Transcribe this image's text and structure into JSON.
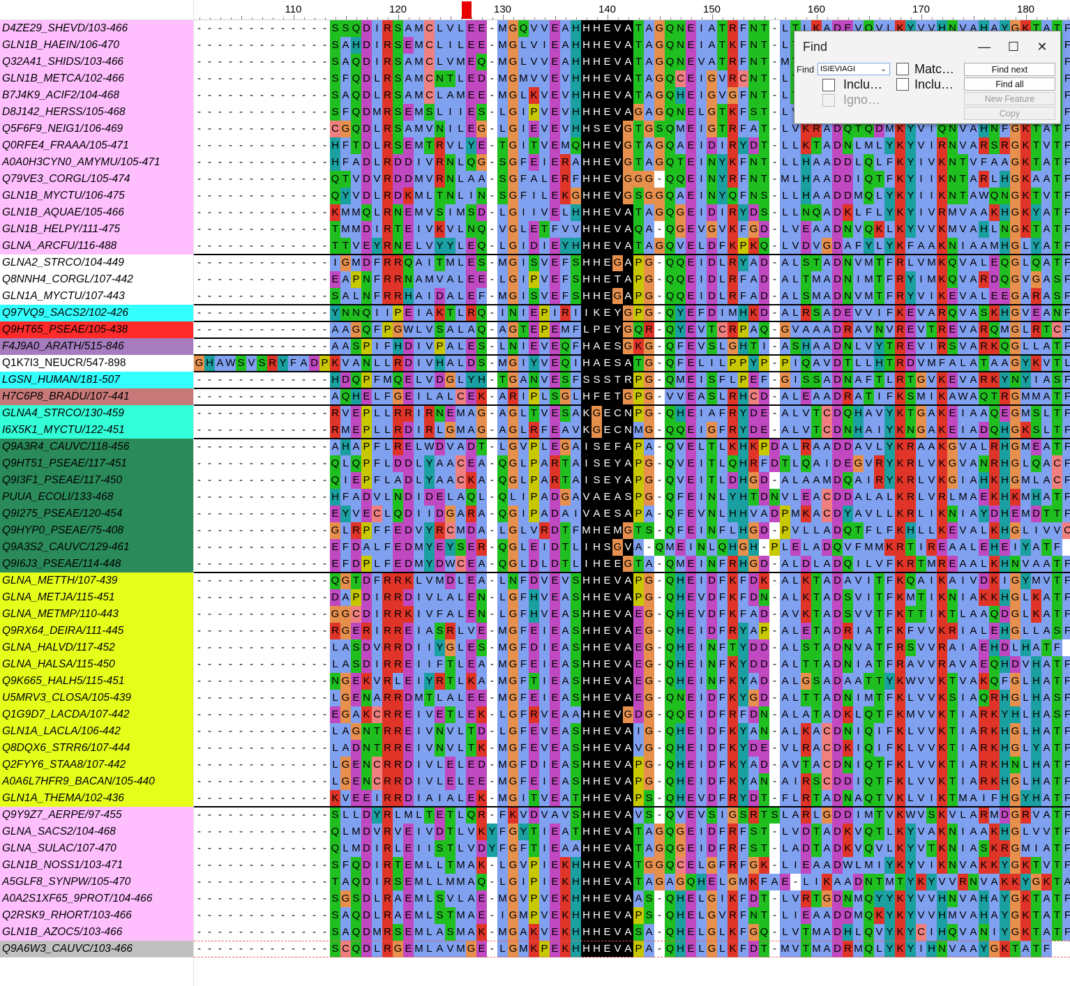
{
  "colors": {
    "G": "#e7904d",
    "P": "#c8c800",
    "S": "#20bf20",
    "T": "#20bf20",
    "C": "#f08080",
    "N": "#20bf20",
    "Q": "#20bf20",
    "D": "#c048c0",
    "E": "#c048c0",
    "K": "#e03428",
    "R": "#e03428",
    "H": "#1aa0a0",
    "Y": "#1aa0a0",
    "A": "#80a0f0",
    "V": "#80a0f0",
    "L": "#80a0f0",
    "I": "#80a0f0",
    "M": "#80a0f0",
    "F": "#80a0f0",
    "W": "#80a0f0"
  },
  "group_colors": {
    "pink": "#ffbfff",
    "cyan": "#33ffff",
    "red": "#ff2a2a",
    "purple": "#a67cbf",
    "brown": "#c87878",
    "aqua": "#33ffd8",
    "green": "#2a8a5a",
    "yellow": "#e5ff1a",
    "gray": "#c0c0c0",
    "white": "#ffffff"
  },
  "ruler": {
    "labels": [
      "110",
      "120",
      "130",
      "140",
      "150",
      "160",
      "170",
      "180"
    ],
    "marker_color": "#e60000"
  },
  "sequences": [
    {
      "name": "D4ZE29_SHEVD/103-466",
      "group": "pink",
      "seq": "-------------SSQDIRSAMCLVLEE-MGQVVEAHHHEVATAGQNEIATRFNT-LTLKADEVQVLKYVVHNVAHAYGKTATF"
    },
    {
      "name": "GLN1B_HAEIN/106-470",
      "group": "pink",
      "seq": "-------------SAHDIRSEMCLILEE-MGLVIEAHHHEVATAGQNEIATKFNT-LTLKADEVQVLKYVVHNVAHAYGKTATF"
    },
    {
      "name": "Q32A41_SHIDS/103-466",
      "group": "pink",
      "seq": "-------------SAQDIRSAMCLVMEQ-MGLVVEAHHHEVATAGQNEVATRFNT-MTLKADEVQVLKYVVHNVAHAYGKTATF"
    },
    {
      "name": "GLN1B_METCA/102-466",
      "group": "pink",
      "seq": "-------------SFQDLRSAMCNTLED-MGMVVEVHHHEVATAGQCEIGVRCNT-LTLKADEVQVLKYVVHNVAHAYGKTATF"
    },
    {
      "name": "B7J4K9_ACIF2/104-468",
      "group": "pink",
      "seq": "-------------SAQDLRSAMCLAMEE-MGLKVEVHHHEVATAGQHEIGVGFNT-LTLKADEVQVLKYVVHNVAHAYGKTATF"
    },
    {
      "name": "D8J142_HERSS/105-468",
      "group": "pink",
      "seq": "-------------SFQDMRSEMSLIIES-LGIPVEVHHHEVAGAGQNELGTKFST-LVLKADEVQVLKYVVHNVAHAYGKTATF"
    },
    {
      "name": "Q5F6F9_NEIG1/106-469",
      "group": "pink",
      "seq": "-------------CGQDLRSAMVNILEG-LGIEVEVHHSEVGTGSQMEIGTRFAT-LVKRADQTQDMKYVIQNVAHNFGKTATF"
    },
    {
      "name": "Q0RFE4_FRAAA/105-471",
      "group": "pink",
      "seq": "-------------HFTDLRSEMTRVLYE-TGITVEMQHHEVGTAGQAEIDIRYDT-LLKTADNLMLYKYVIRNVARSRGKTVTF"
    },
    {
      "name": "A0A0H3CYN0_AMYMU/105-471",
      "group": "pink",
      "seq": "-------------HFADLRDDIVRNLQG-SGFEIERAHHEVGTAGQTEINYKFNT-LLHAADDLQLFKYIVKNTVFAAGKTATF"
    },
    {
      "name": "Q79VE3_CORGL/105-474",
      "group": "pink",
      "seq": "-------------QTVDVRDDMVRNLAA-SGFALERFHHEVGGG-QQEINYRFNT-MLHAADDIQTFKYIIKNTARLHGKAATF"
    },
    {
      "name": "GLN1B_MYCTU/106-475",
      "group": "pink",
      "seq": "-------------QYVDLRDKMLTNLIN-SGFILEKGHHEVGSGGQAEINYQFNS-LLHAADDMQLYKYIIKNTAWQNGKTVTF"
    },
    {
      "name": "GLN1B_AQUAE/105-466",
      "group": "pink",
      "seq": "-------------KMMQLRNEMVSIMSD-LGIIVELHHHEVATAGQGEIDIRYDS-LLNQADKLFLYKYIVRMVAAKHGKYATF"
    },
    {
      "name": "GLN1B_HELPY/111-475",
      "group": "pink",
      "seq": "-------------TMMDIRTEIVKVLNQ-VGLETFVVHHEVAQA-QGEVGVKFGD-LVEAADNVQKLKYVVKMVAHLNGKTATF"
    },
    {
      "name": "GLNA_ARCFU/116-488",
      "group": "pink",
      "seq": "-------------TTVEYRNELVYYLEQ-LGIDIEYHHHEVATAGQVELDFKPKQ-LVDVGDAFYLYKFAAKNIAAMHGLYATF"
    },
    {
      "name": "GLNA2_STRCO/104-449",
      "group": "white",
      "seq": "-------------IGMDFRRQAITMLES-MGISVEFSHHEGAPG-QQEIDLRYAD-ALSTADNVMTFRLVMKQVALEQGLQATF"
    },
    {
      "name": "Q8NNH4_CORGL/107-442",
      "group": "white",
      "seq": "-------------EAPNFRRNAMVALEE-LGIPVEFSHHETAPG-QQEIDLRFAD-ALTMADNIMTFRYIMKQVARDQGVGASF"
    },
    {
      "name": "GLN1A_MYCTU/107-443",
      "group": "white",
      "seq": "-------------SALNFRRHAIDALEF-MGISVEFSHHEGAPG-QQEIDLRFAD-ALSMADNVMTFRYVIKEVALEEGARASF"
    },
    {
      "name": "Q97VQ9_SACS2/102-426",
      "group": "cyan",
      "seq": "-------------YNNQIIPEIAKTLRQ-INIEPIRIIKEYGPG-QYEFDIMHKD-ALRSADEVVIFKEVARQVASKHGVEANF"
    },
    {
      "name": "Q9HT65_PSEAE/105-438",
      "group": "red",
      "seq": "-------------AAGQFPGWLVSALAQ-AGTEPEMFLPEYGQR-QYEVTCRPAQ-GVAAADRAVNVREVTREVARQMGLRTCF"
    },
    {
      "name": "F4J9A0_ARATH/515-846",
      "group": "purple",
      "seq": "-------------AASPIFHDIVPALES-LNIEVEQFHAESGKG-QFEVSLGHTI-ASHAADNLVYTREVIRSVARKQGLLATF"
    },
    {
      "name": "Q1K7I3_NEUCR/547-898",
      "group": "white",
      "normal": true,
      "seq": "GHAWSVSRYFADPKVANLLRDIVHALDS-MGIYVEQIHAESATG-QFELILPPYP-PIQAVDTLLHTRDVMFALATAAGYKVTL"
    },
    {
      "name": "LGSN_HUMAN/181-507",
      "group": "cyan",
      "seq": "-------------HDQPFMQELVDGLYH-TGANVESFSSSTRPG-QMEISFLPEF-GISSADNAFTLRTGVKEVARKYNYIASF"
    },
    {
      "name": "H7C6P8_BRADU/107-441",
      "group": "brown",
      "seq": "-------------AQHELFGEILALCEK-ARIPLSGLHFETGPG-VVEASLRHCD-ALEAADRATIFKSMIKAWAQTRGMMATF"
    },
    {
      "name": "GLNA4_STRCO/130-459",
      "group": "aqua",
      "seq": "-------------RVEPLLRRIRNEMAG-AGLTVESAKGECNPG-QHEIAFRYDE-ALVTCDQHAVYKTGAKEIAAQEGMSLTF"
    },
    {
      "name": "I6X5K1_MYCTU/122-451",
      "group": "aqua",
      "seq": "-------------RMEPLLRDIRLGMAG-AGLRFEAVKGECNMG-QQEIGFRYDE-ALVTCDNHAIYKNGAKEIADQHGKSLTF"
    },
    {
      "name": "Q9A3R4_CAUVC/118-456",
      "group": "green",
      "seq": "-------------AHAPFLRELWDVADT-LGVPLEGAISEFAPA-QVELTLKHKPDALRAADDAVLYKRAAKGVALRHGMEATF"
    },
    {
      "name": "Q9HT51_PSEAE/117-451",
      "group": "green",
      "seq": "-------------QLQPFLDDLYAACEA-QGLPARTAISEYAPG-QVEITLQHRFDTLQAIDEGVRYKRLVKGVANRHGLQACF"
    },
    {
      "name": "Q9I3F1_PSEAE/117-450",
      "group": "green",
      "seq": "-------------QIEPFLADLYAACKA-QGLPARTAISEYAPG-QVEITLDHGD-ALAAMDQAIRYKRLVKGIAHKHGMLACF"
    },
    {
      "name": "PUUA_ECOLI/133-468",
      "group": "green",
      "seq": "-------------HFADVLNDIDELAQL-QLIPADGAVAEASPG-QFEINLYHTDNVLEACDDALALKRLVRLMAEKHKMHATF"
    },
    {
      "name": "Q9I275_PSEAE/120-454",
      "group": "green",
      "seq": "-------------EYVECLQDIIDGARA-QGIPADAIVAESAPA-QFEVNLHHVADPMKACDYAVLLKRLIKNIAYDHEMDTTF"
    },
    {
      "name": "Q9HYP0_PSEAE/75-408",
      "group": "green",
      "seq": "-------------GLRPFFEDVYRCMDA-LGLVRDTFMHEMGTS-QFEINFLHGD-PVLLADQTFLFKHLLKEVALKHGLIVVC"
    },
    {
      "name": "Q9A3S2_CAUVC/129-461",
      "group": "green",
      "seq": "-------------EFDALFEDMYEYSER-QGLEIDTLIHSGVA-QMEINLQHGH-PLELADQVFMMKRTIREAALEHEIYATF"
    },
    {
      "name": "Q9I6J3_PSEAE/114-448",
      "group": "green",
      "seq": "-------------EFDPLFEDMYDWCEA-QGLDLDTLIHEEGTA-QMEINFRHGD-ALDLADQILVFKRTMREAALKHNVAATF"
    },
    {
      "name": "GLNA_METTH/107-439",
      "group": "yellow",
      "seq": "-------------QGTDFRRKLVMDLEA-LNFDVEVSHHEVAPG-QHEIDFKFDK-ALKTADAVITFKQAIKAIVDKIGYMVTF"
    },
    {
      "name": "GLNA_METJA/115-451",
      "group": "yellow",
      "seq": "-------------DAPDIRRDIVLALEN-LGFHVEASHHEVAPG-QHEVDFKFDN-ALKTADSVITFKMTIKNIAKKHGLKATF"
    },
    {
      "name": "GLNA_METMP/110-443",
      "group": "yellow",
      "seq": "-------------GGCDIRRKIVFALEN-LGFHVEASHHEVAEG-QHEVDFKFAD-AVKTADSVVTFKTTIKTLAAQDGLKATF"
    },
    {
      "name": "Q9RX64_DEIRA/111-445",
      "group": "yellow",
      "seq": "-------------RGERIRREIASRLVE-MGFEIEASHHEVAEG-QHEIDFRYAP-ALETADRIATFKFVVKRIALEHGLLASF"
    },
    {
      "name": "GLNA_HALVD/117-452",
      "group": "yellow",
      "seq": "-------------LASDVRRDIIYGLES-MGFDIEASHHEVAEG-QHEINFTYDD-ALSTADNVATFRSVVRAIAEHDLHATF"
    },
    {
      "name": "GLNA_HALSA/115-450",
      "group": "yellow",
      "seq": "-------------LASDIRREIIFTLEA-MGFEIEASHHEVAEG-QHEINFKYDD-ALTTADNIATFRAVVRAVAEQHDVHATF"
    },
    {
      "name": "Q9K665_HALH5/115-451",
      "group": "yellow",
      "seq": "-------------NGEKVRLEIYRTLKA-MGFTIEASHHEVAEG-QHEINFKYAD-ALGSADAATTYKWVVKTVAKQFGLHATF"
    },
    {
      "name": "U5MRV3_CLOSA/105-439",
      "group": "yellow",
      "seq": "-------------LGENARRDMTLALEE-MGFEIEASHHEVAEG-QNEIDFKYGD-ALTTADNIMTFKLVVKSIAQRHGLHASF"
    },
    {
      "name": "Q1G9D7_LACDA/107-442",
      "group": "yellow",
      "seq": "-------------EGAKCRREIVETLEK-LGFRVEAAHHEVGDG-QQEIDFRFDN-ALATADKLQTFKMVVKTIARKYHLHASF"
    },
    {
      "name": "GLN1A_LACLA/106-442",
      "group": "yellow",
      "seq": "-------------LAGNTRREIVNVLTD-LGFEVEASHHEVAIG-QHEIDFKYAN-ALKACDNIQIFKLVVKTIARKHGLHATF"
    },
    {
      "name": "Q8DQX6_STRR6/107-444",
      "group": "yellow",
      "seq": "-------------LADNTRREIVNVLTK-MGFEVEASHHEVAVG-QHEIDFKYDE-VLRACDKIQIFKLVVKTIARKHGLYATF"
    },
    {
      "name": "Q2FYY6_STAA8/107-442",
      "group": "yellow",
      "seq": "-------------LGENCRRDIVLELED-MGFDIEASHHEVAPG-QHEIDFKYAD-AVTACDNIQTFKLVVKTIARKHNLHATF"
    },
    {
      "name": "A0A6L7HFR9_BACAN/105-440",
      "group": "yellow",
      "seq": "-------------LGENCRRDIVLELEE-MGFEIEASHHEVAPG-QHEIDFKYAN-AIRSCDDIQTFKLVVKTIARKHGLHATF"
    },
    {
      "name": "GLN1A_THEMA/102-436",
      "group": "yellow",
      "seq": "-------------KVEEIRRDIAIALEK-MGITVEATHHEVAPS-QHEVDFRYDT-FLRTADNAQTVKLVIKTMAIFHGYHATF"
    },
    {
      "name": "Q9Y9Z7_AERPE/97-455",
      "group": "pink",
      "seq": "-------------SLLDYRLMLTETLQR-FKVDVAVSHHEVAVS-QVEVSIGSRTSLARLGDDIMTVKWVSKVLARMDGRVATF"
    },
    {
      "name": "GLNA_SACS2/104-468",
      "group": "pink",
      "seq": "-------------QLMDVRVEIVDTLVKYFGYTIEATHHEVATAGQGEIDFRFST-LVDTADKVQTLKYVAKNIAAKHGLVVTF"
    },
    {
      "name": "GLNA_SULAC/107-470",
      "group": "pink",
      "seq": "-------------QLMDIRLEIISTLVDYFGFTIEAAHHEVATAGQGEIDFRFST-LADTADKVQVLKYVTKNIASKRGMIATF"
    },
    {
      "name": "GLN1B_NOSS1/103-471",
      "group": "pink",
      "seq": "-------------SFQDIRTEMLLTMAK-LGVPIEKHHHEVATGGQCELGFRFGK-LIEAADWLMIYKYVIKNVAKKYGKTVTF"
    },
    {
      "name": "A5GLF8_SYNPW/105-470",
      "group": "pink",
      "seq": "-------------TAQDIRSEMLLMMAQ-LGIPIEKHHHEVATAGAGQHELGMKFAE-LIKAADNTMTYKYVVRNVAKKYGKTATF"
    },
    {
      "name": "A0A2S1XF65_9PROT/104-466",
      "group": "pink",
      "seq": "-------------SGSDLRAEMLSVLAE-MGVPVEKHHHEVAAS-QHELGIKFDT-LVRTGDNMQYYKYVVHNVAHAYGKTATF"
    },
    {
      "name": "Q2RSK9_RHORT/103-466",
      "group": "pink",
      "seq": "-------------SAQDLRAEMLSTMAE-IGMPVEKHHHEVAPS-QHELGVRFNT-LIEAADDMQKYKYVVHMVAHAYGKTATF"
    },
    {
      "name": "GLN1B_AZOC5/103-466",
      "group": "pink",
      "seq": "-------------SAQDMRSEMLASMAK-MGAKVEKHHHEVASA-QHELGLKFGQ-LVTMADHLQVYKYCIHQVANIYGKTATF"
    },
    {
      "name": "Q9A6W3_CAUVC/103-466",
      "group": "gray",
      "seq": "-------------SCQDLRGEMLAVMGE-LGMKPEKHHHEVAPA-QHELGLKFDT-MVTMADRMQLYKYIHNVAAYGKTATF"
    }
  ],
  "find_dialog": {
    "title": "Find",
    "minimize_icon": "—",
    "maximize_icon": "☐",
    "close_icon": "✕",
    "find_label": "Find",
    "find_value": "ISIEVIAGI",
    "options": [
      {
        "label": "Matc…",
        "checked": false,
        "disabled": false
      },
      {
        "label": "Inclu…",
        "checked": false,
        "disabled": false
      },
      {
        "label": "Inclu…",
        "checked": false,
        "disabled": false
      },
      {
        "label": "Igno…",
        "checked": false,
        "disabled": true
      }
    ],
    "buttons": [
      {
        "label": "Find next",
        "disabled": false
      },
      {
        "label": "Find all",
        "disabled": false
      },
      {
        "label": "New Feature",
        "disabled": true
      },
      {
        "label": "Copy",
        "disabled": true
      }
    ]
  }
}
